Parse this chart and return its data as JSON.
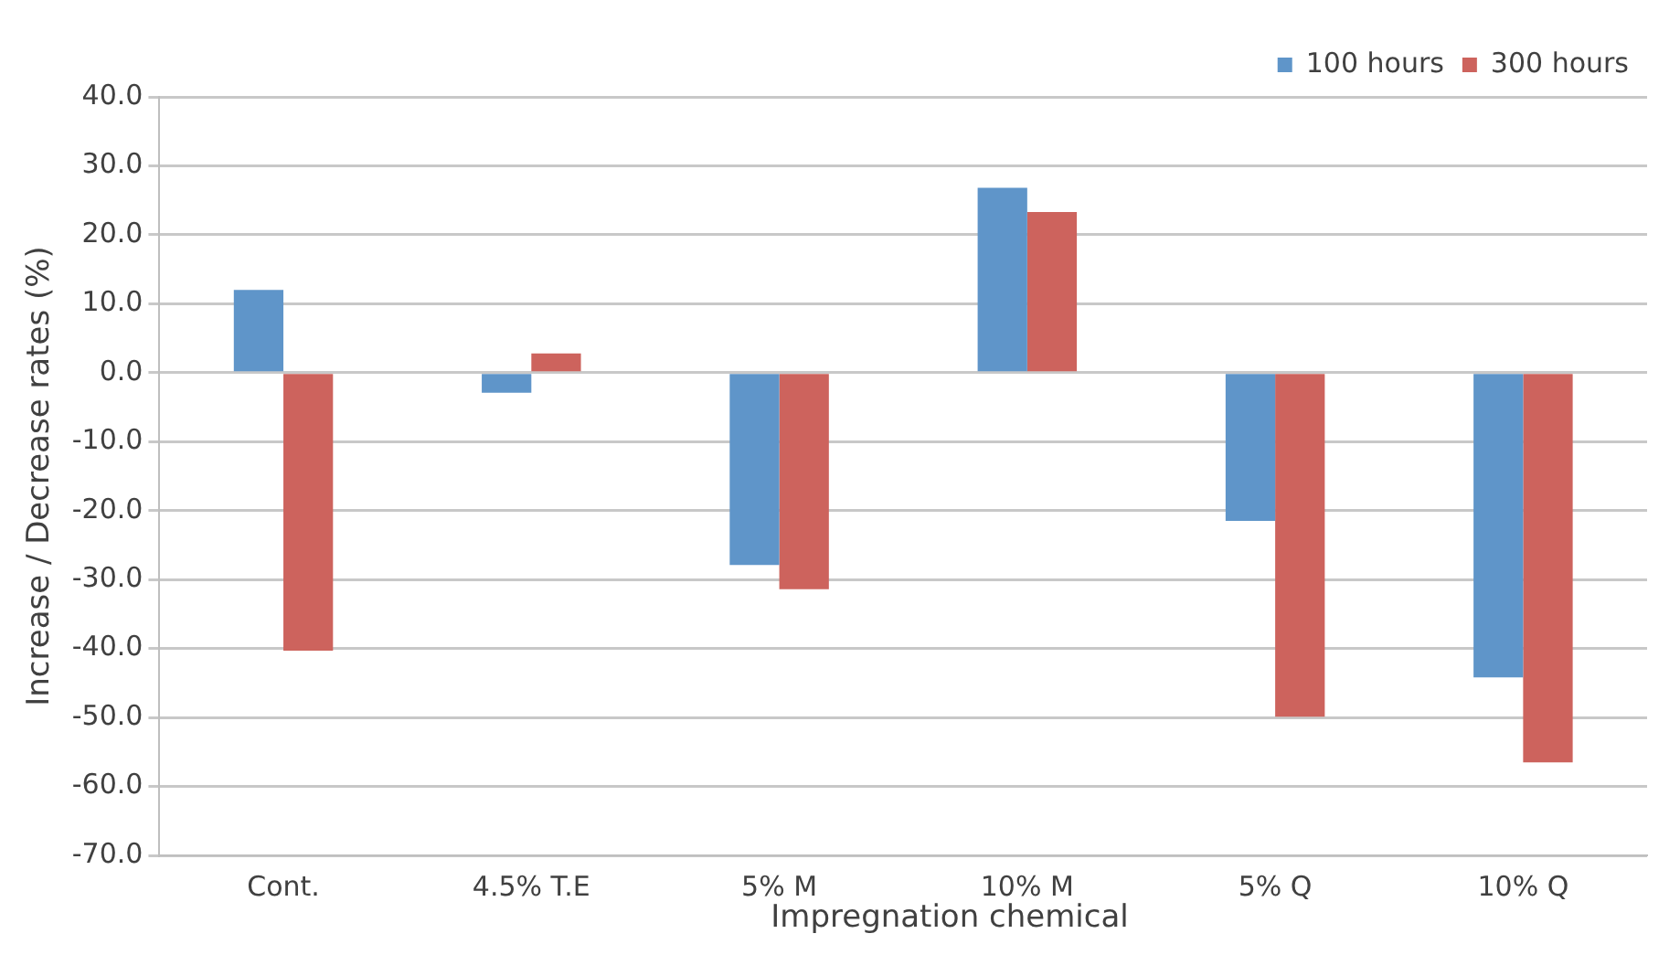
{
  "chart_data": {
    "type": "bar",
    "xlabel": "Impregnation chemical",
    "ylabel": "Increase / Decrease rates (%)",
    "categories": [
      "Cont.",
      "4.5% T.E",
      "5% M",
      "10% M",
      "5% Q",
      "10% Q"
    ],
    "series": [
      {
        "name": "100 hours",
        "color": "#5f95c9",
        "values": [
          12.0,
          -2.9,
          -27.9,
          26.8,
          -21.5,
          -44.2
        ]
      },
      {
        "name": "300 hours",
        "color": "#cd635d",
        "values": [
          -40.3,
          2.8,
          -31.4,
          23.3,
          -49.9,
          -56.5
        ]
      }
    ],
    "ylim": [
      -70,
      40
    ],
    "yticks": [
      {
        "value": -70,
        "label": "-70.0"
      },
      {
        "value": -60,
        "label": "-60.0"
      },
      {
        "value": -50,
        "label": "-50.0"
      },
      {
        "value": -40,
        "label": "-40.0"
      },
      {
        "value": -30,
        "label": "-30.0"
      },
      {
        "value": -20,
        "label": "-20.0"
      },
      {
        "value": -10,
        "label": "-10.0"
      },
      {
        "value": 0,
        "label": "0.0"
      },
      {
        "value": 10,
        "label": "10.0"
      },
      {
        "value": 20,
        "label": "20.0"
      },
      {
        "value": 30,
        "label": "30.0"
      },
      {
        "value": 40,
        "label": "40.0"
      }
    ],
    "grid": "y",
    "legend": "top right"
  }
}
